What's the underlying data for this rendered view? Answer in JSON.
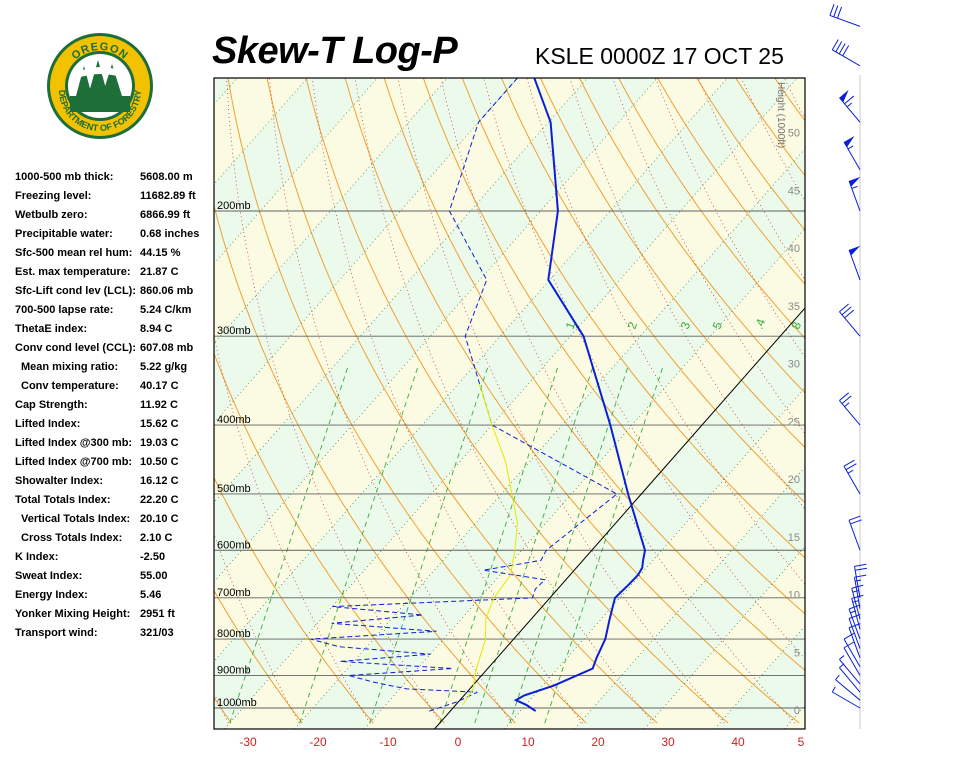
{
  "header": {
    "title": "Skew-T Log-P",
    "station_time": "KSLE 0000Z 17 OCT 25",
    "logo_top_text": "OREGON",
    "logo_bottom_text": "DEPARTMENT OF FORESTRY"
  },
  "indices": [
    {
      "label": "1000-500 mb thick:",
      "value": "5608.00 m",
      "indent": false
    },
    {
      "label": "Freezing level:",
      "value": "11682.89 ft",
      "indent": false
    },
    {
      "label": "Wetbulb zero:",
      "value": "6866.99 ft",
      "indent": false
    },
    {
      "label": "Precipitable water:",
      "value": "0.68 inches",
      "indent": false
    },
    {
      "label": "Sfc-500 mean rel hum:",
      "value": "44.15 %",
      "indent": false
    },
    {
      "label": "Est. max temperature:",
      "value": "21.87 C",
      "indent": false
    },
    {
      "label": "Sfc-Lift cond lev (LCL):",
      "value": "860.06 mb",
      "indent": false
    },
    {
      "label": "700-500 lapse rate:",
      "value": "5.24 C/km",
      "indent": false
    },
    {
      "label": "ThetaE index:",
      "value": "8.94 C",
      "indent": false
    },
    {
      "label": "Conv cond level (CCL):",
      "value": "607.08 mb",
      "indent": false
    },
    {
      "label": "Mean mixing ratio:",
      "value": "5.22 g/kg",
      "indent": true
    },
    {
      "label": "Conv temperature:",
      "value": "40.17 C",
      "indent": true
    },
    {
      "label": "Cap Strength:",
      "value": "11.92 C",
      "indent": false
    },
    {
      "label": "Lifted Index:",
      "value": "15.62 C",
      "indent": false
    },
    {
      "label": "Lifted Index @300 mb:",
      "value": "19.03 C",
      "indent": false
    },
    {
      "label": "Lifted Index @700 mb:",
      "value": "10.50 C",
      "indent": false
    },
    {
      "label": "Showalter Index:",
      "value": "16.12 C",
      "indent": false
    },
    {
      "label": "Total Totals Index:",
      "value": "22.20 C",
      "indent": false
    },
    {
      "label": "Vertical Totals Index:",
      "value": "20.10 C",
      "indent": true
    },
    {
      "label": "Cross Totals Index:",
      "value": "2.10 C",
      "indent": true
    },
    {
      "label": "K Index:",
      "value": "-2.50",
      "indent": false
    },
    {
      "label": "Sweat Index:",
      "value": "55.00",
      "indent": false
    },
    {
      "label": "Energy Index:",
      "value": "5.46",
      "indent": false
    },
    {
      "label": "Yonker Mixing Height:",
      "value": "2951 ft",
      "indent": false
    },
    {
      "label": "Transport wind:",
      "value": "321/03",
      "indent": false
    }
  ],
  "chart_data": {
    "type": "line",
    "xlabel": "",
    "ylabel": "",
    "x_ticks": [
      "-30",
      "-20",
      "-10",
      "0",
      "10",
      "20",
      "30",
      "40",
      "5"
    ],
    "pressure_levels": [
      {
        "p": 200,
        "label": "200mb"
      },
      {
        "p": 300,
        "label": "300mb"
      },
      {
        "p": 400,
        "label": "400mb"
      },
      {
        "p": 500,
        "label": "500mb"
      },
      {
        "p": 600,
        "label": "600mb"
      },
      {
        "p": 700,
        "label": "700mb"
      },
      {
        "p": 800,
        "label": "800mb"
      },
      {
        "p": 900,
        "label": "900mb"
      },
      {
        "p": 1000,
        "label": "1000mb"
      }
    ],
    "height_axis_title": "Height (1000ft)",
    "height_ticks": [
      "0",
      "5",
      "10",
      "15",
      "20",
      "25",
      "30",
      "35",
      "40",
      "45",
      "50"
    ],
    "mixing_ratio_labels": [
      "1",
      "2",
      "3",
      "5",
      ".4",
      "8"
    ],
    "series": [
      {
        "name": "",
        "color": "#0a1fd6",
        "style": "solid",
        "points": [
          {
            "p": 1010,
            "t": 12.2
          },
          {
            "p": 990,
            "t": 10.1
          },
          {
            "p": 975,
            "t": 8.0
          },
          {
            "p": 960,
            "t": 8.6
          },
          {
            "p": 930,
            "t": 11.6
          },
          {
            "p": 880,
            "t": 15.0
          },
          {
            "p": 850,
            "t": 14.2
          },
          {
            "p": 800,
            "t": 13.1
          },
          {
            "p": 750,
            "t": 11.2
          },
          {
            "p": 700,
            "t": 9.3
          },
          {
            "p": 670,
            "t": 9.6
          },
          {
            "p": 650,
            "t": 9.7
          },
          {
            "p": 635,
            "t": 9.4
          },
          {
            "p": 620,
            "t": 8.6
          },
          {
            "p": 600,
            "t": 7.6
          },
          {
            "p": 500,
            "t": -1.9
          },
          {
            "p": 400,
            "t": -13.1
          },
          {
            "p": 300,
            "t": -28.1
          },
          {
            "p": 250,
            "t": -40.2
          },
          {
            "p": 200,
            "t": -47.5
          },
          {
            "p": 150,
            "t": -59.7
          },
          {
            "p": 120,
            "t": -72.0
          }
        ]
      },
      {
        "name": "",
        "color": "#0a1fd6",
        "style": "dashed",
        "points": [
          {
            "p": 1010,
            "t": -3.0
          },
          {
            "p": 980,
            "t": -0.2
          },
          {
            "p": 950,
            "t": 1.5
          },
          {
            "p": 940,
            "t": -9.0
          },
          {
            "p": 920,
            "t": -14.5
          },
          {
            "p": 900,
            "t": -19.0
          },
          {
            "p": 880,
            "t": -5.0
          },
          {
            "p": 860,
            "t": -22.0
          },
          {
            "p": 840,
            "t": -10.0
          },
          {
            "p": 820,
            "t": -24.0
          },
          {
            "p": 800,
            "t": -29.0
          },
          {
            "p": 780,
            "t": -12.0
          },
          {
            "p": 760,
            "t": -28.0
          },
          {
            "p": 740,
            "t": -16.0
          },
          {
            "p": 720,
            "t": -30.0
          },
          {
            "p": 700,
            "t": -2.5
          },
          {
            "p": 680,
            "t": -3.2
          },
          {
            "p": 660,
            "t": -3.0
          },
          {
            "p": 640,
            "t": -13.0
          },
          {
            "p": 620,
            "t": -6.0
          },
          {
            "p": 600,
            "t": -6.5
          },
          {
            "p": 500,
            "t": -3.5
          },
          {
            "p": 400,
            "t": -30.0
          },
          {
            "p": 300,
            "t": -45.0
          },
          {
            "p": 250,
            "t": -49.0
          },
          {
            "p": 200,
            "t": -63.0
          },
          {
            "p": 150,
            "t": -70.0
          },
          {
            "p": 120,
            "t": -70.0
          }
        ]
      },
      {
        "name": "",
        "color": "#e8e800",
        "style": "solid",
        "points": [
          {
            "p": 990,
            "t": 1.0
          },
          {
            "p": 940,
            "t": 0.5
          },
          {
            "p": 900,
            "t": -1.0
          },
          {
            "p": 850,
            "t": -2.5
          },
          {
            "p": 800,
            "t": -4.0
          },
          {
            "p": 750,
            "t": -6.5
          },
          {
            "p": 700,
            "t": -8.0
          },
          {
            "p": 650,
            "t": -8.5
          },
          {
            "p": 600,
            "t": -11.0
          },
          {
            "p": 550,
            "t": -14.0
          },
          {
            "p": 500,
            "t": -18.5
          },
          {
            "p": 450,
            "t": -23.5
          },
          {
            "p": 400,
            "t": -30.0
          },
          {
            "p": 350,
            "t": -37.0
          }
        ]
      }
    ],
    "wind_barbs": [
      {
        "p": 1000,
        "speed_kt": 5,
        "dir": 300
      },
      {
        "p": 975,
        "speed_kt": 5,
        "dir": 310
      },
      {
        "p": 950,
        "speed_kt": 5,
        "dir": 320
      },
      {
        "p": 925,
        "speed_kt": 5,
        "dir": 320
      },
      {
        "p": 900,
        "speed_kt": 10,
        "dir": 330
      },
      {
        "p": 875,
        "speed_kt": 10,
        "dir": 330
      },
      {
        "p": 850,
        "speed_kt": 10,
        "dir": 340
      },
      {
        "p": 825,
        "speed_kt": 10,
        "dir": 340
      },
      {
        "p": 800,
        "speed_kt": 15,
        "dir": 340
      },
      {
        "p": 775,
        "speed_kt": 15,
        "dir": 345
      },
      {
        "p": 750,
        "speed_kt": 15,
        "dir": 345
      },
      {
        "p": 725,
        "speed_kt": 15,
        "dir": 350
      },
      {
        "p": 700,
        "speed_kt": 20,
        "dir": 350
      },
      {
        "p": 600,
        "speed_kt": 20,
        "dir": 340
      },
      {
        "p": 500,
        "speed_kt": 25,
        "dir": 330
      },
      {
        "p": 400,
        "speed_kt": 25,
        "dir": 320
      },
      {
        "p": 300,
        "speed_kt": 30,
        "dir": 320
      },
      {
        "p": 250,
        "speed_kt": 50,
        "dir": 340
      },
      {
        "p": 200,
        "speed_kt": 55,
        "dir": 340
      },
      {
        "p": 175,
        "speed_kt": 55,
        "dir": 330
      },
      {
        "p": 150,
        "speed_kt": 65,
        "dir": 320
      },
      {
        "p": 125,
        "speed_kt": 40,
        "dir": 300
      },
      {
        "p": 110,
        "speed_kt": 30,
        "dir": 290
      }
    ]
  }
}
